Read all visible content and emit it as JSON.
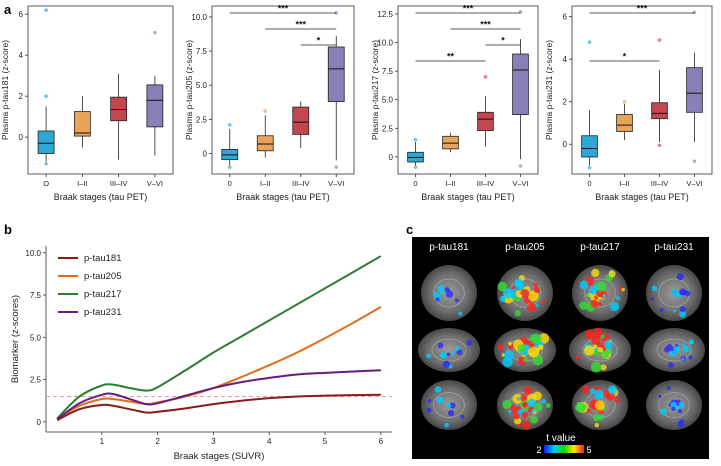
{
  "panel_labels": {
    "a": "a",
    "b": "b",
    "c": "c"
  },
  "colors": {
    "stage_fill": [
      "#2ea6d6",
      "#e8a45a",
      "#c2474f",
      "#8b7fb8"
    ],
    "stage_outlier": [
      "#6cc6e8",
      "#f0c286",
      "#d9878d",
      "#b4acd4"
    ],
    "p_tau181": "#8b1a1a",
    "p_tau205": "#e06c1c",
    "p_tau217": "#2e7d32",
    "p_tau231": "#6a1b7f",
    "threshold": "#e0a0a0"
  },
  "chart_data": [
    {
      "type": "boxplot",
      "title": "",
      "xlabel": "Braak stages (tau PET)",
      "ylabel": "Plasma p-tau181 (z-score)",
      "categories": [
        "O",
        "I–II",
        "III–IV",
        "V–VI"
      ],
      "ylim": [
        -1.8,
        6.4
      ],
      "yticks": [
        0,
        2,
        4,
        6
      ],
      "ytick_labels": [
        "0",
        "2",
        "4",
        "6"
      ],
      "boxes": [
        {
          "q1": -0.8,
          "median": -0.3,
          "q3": 0.3,
          "whisker_low": -1.2,
          "whisker_high": 1.5,
          "outliers": [
            6.2,
            2.0,
            -1.3
          ]
        },
        {
          "q1": 0.05,
          "median": 0.2,
          "q3": 1.25,
          "whisker_low": -0.5,
          "whisker_high": 2.0,
          "outliers": []
        },
        {
          "q1": 0.8,
          "median": 1.35,
          "q3": 1.95,
          "whisker_low": -1.1,
          "whisker_high": 3.1,
          "outliers": []
        },
        {
          "q1": 0.5,
          "median": 1.8,
          "q3": 2.55,
          "whisker_low": -0.9,
          "whisker_high": 3.0,
          "outliers": [
            5.1
          ]
        }
      ],
      "significance": []
    },
    {
      "type": "boxplot",
      "title": "",
      "xlabel": "Braak stages (tau PET)",
      "ylabel": "Plasma p-tau205 (z-score)",
      "categories": [
        "0",
        "I–II",
        "III–IV",
        "V–VI"
      ],
      "ylim": [
        -1.5,
        10.8
      ],
      "yticks": [
        0,
        2.5,
        5.0,
        7.5,
        10.0
      ],
      "ytick_labels": [
        "0",
        "2.5",
        "5.0",
        "7.5",
        "10.0"
      ],
      "boxes": [
        {
          "q1": -0.45,
          "median": -0.1,
          "q3": 0.3,
          "whisker_low": -0.9,
          "whisker_high": 1.8,
          "outliers": [
            2.1,
            -1.0
          ]
        },
        {
          "q1": 0.2,
          "median": 0.7,
          "q3": 1.3,
          "whisker_low": -0.3,
          "whisker_high": 2.8,
          "outliers": [
            3.1
          ]
        },
        {
          "q1": 1.4,
          "median": 2.3,
          "q3": 3.4,
          "whisker_low": 0.4,
          "whisker_high": 3.8,
          "outliers": []
        },
        {
          "q1": 3.8,
          "median": 6.2,
          "q3": 7.8,
          "whisker_low": -0.5,
          "whisker_high": 8.6,
          "outliers": [
            10.3,
            -1.0
          ]
        }
      ],
      "significance": [
        {
          "from": 0,
          "to": 3,
          "label": "***"
        },
        {
          "from": 1,
          "to": 3,
          "label": "***"
        },
        {
          "from": 2,
          "to": 3,
          "label": "*"
        }
      ]
    },
    {
      "type": "boxplot",
      "title": "",
      "xlabel": "Braak stages (tau PET)",
      "ylabel": "Plasma p-tau217 (z-score)",
      "categories": [
        "0",
        "I–II",
        "III–IV",
        "V–VI"
      ],
      "ylim": [
        -1.5,
        13.2
      ],
      "yticks": [
        0,
        2.5,
        5.0,
        7.5,
        10.0,
        12.5
      ],
      "ytick_labels": [
        "0",
        "2.5",
        "5.0",
        "7.5",
        "10.0",
        "12.5"
      ],
      "boxes": [
        {
          "q1": -0.45,
          "median": -0.05,
          "q3": 0.4,
          "whisker_low": -0.8,
          "whisker_high": 1.3,
          "outliers": [
            1.5,
            -0.9
          ]
        },
        {
          "q1": 0.7,
          "median": 1.2,
          "q3": 1.8,
          "whisker_low": 0.4,
          "whisker_high": 2.1,
          "outliers": []
        },
        {
          "q1": 2.3,
          "median": 3.3,
          "q3": 3.9,
          "whisker_low": 0.9,
          "whisker_high": 5.3,
          "outliers": [
            7.0
          ]
        },
        {
          "q1": 3.7,
          "median": 7.6,
          "q3": 9.0,
          "whisker_low": -0.2,
          "whisker_high": 10.3,
          "outliers": [
            12.7,
            -0.8
          ]
        }
      ],
      "significance": [
        {
          "from": 0,
          "to": 3,
          "label": "***"
        },
        {
          "from": 1,
          "to": 3,
          "label": "***"
        },
        {
          "from": 2,
          "to": 3,
          "label": "*"
        },
        {
          "from": 0,
          "to": 2,
          "label": "**"
        }
      ]
    },
    {
      "type": "boxplot",
      "title": "",
      "xlabel": "Braak stages (tau PET)",
      "ylabel": "Plasma p-tau231 (z-score)",
      "categories": [
        "0",
        "I–II",
        "III–IV",
        "V–VI"
      ],
      "ylim": [
        -1.4,
        6.5
      ],
      "yticks": [
        0,
        2,
        4,
        6
      ],
      "ytick_labels": [
        "0",
        "2",
        "4",
        "6"
      ],
      "boxes": [
        {
          "q1": -0.6,
          "median": -0.2,
          "q3": 0.4,
          "whisker_low": -1.0,
          "whisker_high": 1.6,
          "outliers": [
            4.8,
            -1.1
          ]
        },
        {
          "q1": 0.6,
          "median": 0.9,
          "q3": 1.4,
          "whisker_low": 0.2,
          "whisker_high": 1.9,
          "outliers": [
            2.0
          ]
        },
        {
          "q1": 1.2,
          "median": 1.45,
          "q3": 1.95,
          "whisker_low": 0.1,
          "whisker_high": 3.5,
          "outliers": [
            4.9,
            -0.05
          ]
        },
        {
          "q1": 1.5,
          "median": 2.4,
          "q3": 3.6,
          "whisker_low": 0.1,
          "whisker_high": 4.3,
          "outliers": [
            6.2,
            -0.8
          ]
        }
      ],
      "significance": [
        {
          "from": 0,
          "to": 3,
          "label": "***"
        },
        {
          "from": 0,
          "to": 2,
          "label": "*"
        }
      ]
    },
    {
      "type": "line",
      "title": "",
      "xlabel": "Braak stages (SUVR)",
      "ylabel": "Biomarker (z-scores)",
      "xlim": [
        0,
        6.2
      ],
      "ylim": [
        -0.6,
        10.4
      ],
      "xticks": [
        1,
        2,
        3,
        4,
        5,
        6
      ],
      "yticks": [
        0,
        2.5,
        5.0,
        7.5,
        10.0
      ],
      "ytick_labels": [
        "0",
        "2.5",
        "5.0",
        "7.5",
        "10.0"
      ],
      "threshold": 1.5,
      "series": [
        {
          "name": "p-tau181",
          "color": "#8b1a1a",
          "x": [
            0.2,
            0.6,
            1.0,
            1.2,
            1.5,
            1.8,
            2.0,
            2.5,
            3.0,
            3.5,
            4.0,
            4.5,
            5.0,
            5.5,
            6.0
          ],
          "y": [
            0.1,
            0.75,
            1.0,
            0.95,
            0.75,
            0.55,
            0.6,
            0.8,
            1.05,
            1.25,
            1.4,
            1.5,
            1.55,
            1.58,
            1.6
          ]
        },
        {
          "name": "p-tau205",
          "color": "#e06c1c",
          "x": [
            0.2,
            0.6,
            1.0,
            1.2,
            1.5,
            1.8,
            2.0,
            2.5,
            3.0,
            3.5,
            4.0,
            4.5,
            5.0,
            5.5,
            6.0
          ],
          "y": [
            0.2,
            0.95,
            1.35,
            1.35,
            1.2,
            1.05,
            1.15,
            1.5,
            2.0,
            2.65,
            3.35,
            4.1,
            4.95,
            5.85,
            6.8
          ]
        },
        {
          "name": "p-tau217",
          "color": "#2e7d32",
          "x": [
            0.2,
            0.6,
            1.0,
            1.2,
            1.5,
            1.8,
            2.0,
            2.5,
            3.0,
            3.5,
            4.0,
            4.5,
            5.0,
            5.5,
            6.0
          ],
          "y": [
            0.2,
            1.5,
            2.15,
            2.2,
            2.0,
            1.85,
            2.05,
            3.05,
            4.1,
            5.05,
            6.0,
            6.95,
            7.9,
            8.85,
            9.8
          ]
        },
        {
          "name": "p-tau231",
          "color": "#6a1b7f",
          "x": [
            0.2,
            0.6,
            1.0,
            1.2,
            1.5,
            1.8,
            2.0,
            2.5,
            3.0,
            3.5,
            4.0,
            4.5,
            5.0,
            5.5,
            6.0
          ],
          "y": [
            0.15,
            1.1,
            1.6,
            1.65,
            1.35,
            1.05,
            1.1,
            1.55,
            2.0,
            2.35,
            2.6,
            2.8,
            2.9,
            2.98,
            3.05
          ]
        }
      ]
    }
  ],
  "brain_panel": {
    "columns": [
      "p-tau181",
      "p-tau205",
      "p-tau217",
      "p-tau231"
    ],
    "views": [
      "axial",
      "sagittal",
      "coronal"
    ],
    "colorbar_label": "t value",
    "colorbar_min": "2",
    "colorbar_max": "5"
  }
}
